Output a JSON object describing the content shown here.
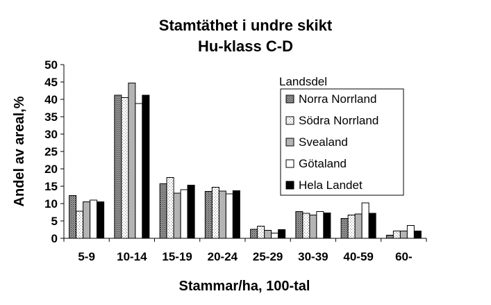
{
  "chart_data": {
    "type": "bar",
    "title": "Stamtäthet i undre skikt",
    "subtitle": "Hu-klass C-D",
    "xlabel": "Stammar/ha, 100-tal",
    "ylabel": "Andel av areal,%",
    "ylim": [
      0,
      50
    ],
    "yticks": [
      "0",
      "5",
      "10",
      "15",
      "20",
      "25",
      "30",
      "35",
      "40",
      "45",
      "50"
    ],
    "grid": false,
    "legend_title": "Landsdel",
    "legend_position": "right",
    "categories": [
      "5-9",
      "10-14",
      "15-19",
      "20-24",
      "25-29",
      "30-39",
      "40-59",
      "60-"
    ],
    "series": [
      {
        "name": "Norra Norrland",
        "pattern": "dots-dark",
        "values": [
          12.3,
          41.2,
          15.7,
          13.5,
          2.6,
          7.7,
          5.7,
          0.9
        ]
      },
      {
        "name": "Södra Norrland",
        "pattern": "dots-light",
        "values": [
          7.8,
          40.5,
          17.5,
          14.7,
          3.5,
          7.2,
          6.7,
          2.1
        ]
      },
      {
        "name": "Svealand",
        "pattern": "gray",
        "values": [
          10.5,
          44.7,
          13.0,
          13.6,
          2.3,
          6.7,
          7.0,
          2.1
        ]
      },
      {
        "name": "Götaland",
        "pattern": "white",
        "values": [
          11.0,
          38.8,
          14.0,
          12.8,
          1.5,
          7.7,
          10.2,
          3.7
        ]
      },
      {
        "name": "Hela Landet",
        "pattern": "black",
        "values": [
          10.5,
          41.2,
          15.3,
          13.7,
          2.5,
          7.3,
          7.2,
          2.1
        ]
      }
    ]
  }
}
